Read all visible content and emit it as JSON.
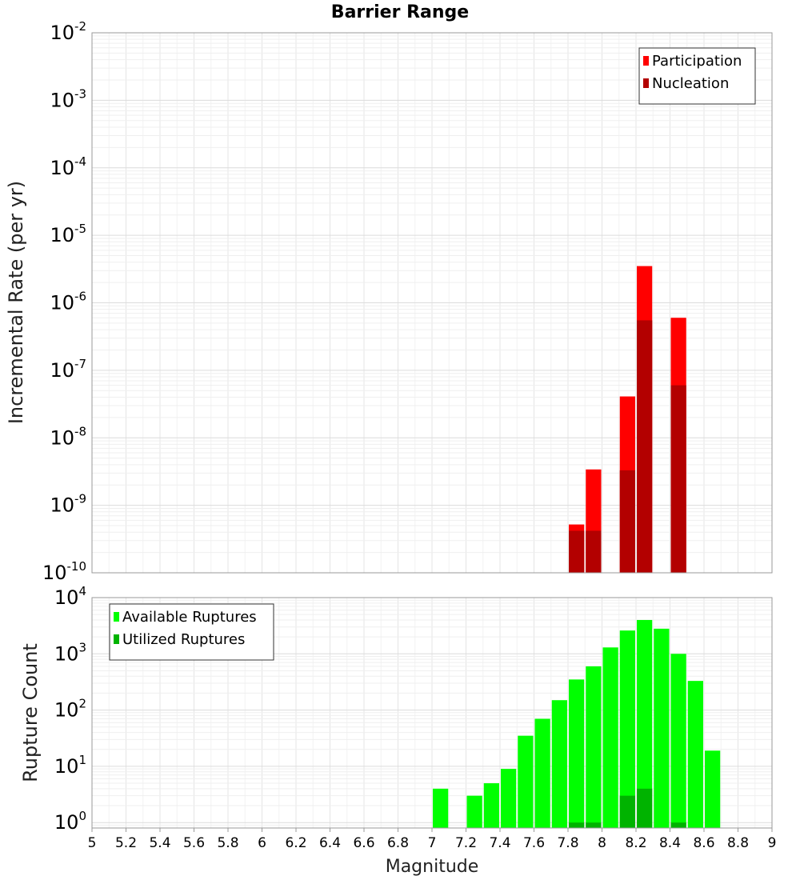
{
  "chart_data": [
    {
      "type": "bar",
      "title": "Barrier Range",
      "xlabel": "",
      "ylabel": "Incremental Rate (per yr)",
      "yscale": "log",
      "ylim": [
        1e-10,
        0.01
      ],
      "xlim": [
        5,
        9
      ],
      "grid": true,
      "legend_position": "top-right",
      "x": [
        7.85,
        7.95,
        8.15,
        8.25,
        8.45
      ],
      "series": [
        {
          "name": "Participation",
          "color": "#ff0000",
          "values": [
            5.2e-10,
            3.4e-09,
            4.1e-08,
            3.5e-06,
            6e-07
          ]
        },
        {
          "name": "Nucleation",
          "color": "#b30000",
          "values": [
            4.2e-10,
            4.2e-10,
            3.3e-09,
            5.5e-07,
            6e-08
          ]
        }
      ]
    },
    {
      "type": "bar",
      "xlabel": "Magnitude",
      "ylabel": "Rupture Count",
      "yscale": "log",
      "ylim": [
        0.8,
        10000
      ],
      "xlim": [
        5,
        9
      ],
      "grid": true,
      "legend_position": "top-left",
      "x": [
        7.05,
        7.25,
        7.35,
        7.45,
        7.55,
        7.65,
        7.75,
        7.85,
        7.95,
        8.05,
        8.15,
        8.25,
        8.35,
        8.45,
        8.55,
        8.65
      ],
      "series": [
        {
          "name": "Available Ruptures",
          "color": "#00ff00",
          "values": [
            4,
            3,
            5,
            9,
            35,
            70,
            150,
            350,
            600,
            1300,
            2600,
            4000,
            2800,
            1000,
            330,
            19
          ]
        },
        {
          "name": "Utilized Ruptures",
          "color": "#00b300",
          "values": [
            0,
            0,
            0,
            0,
            0,
            0,
            0,
            1,
            1,
            0,
            3,
            4,
            0,
            1,
            0,
            0
          ]
        }
      ],
      "xticks": [
        "5",
        "5.2",
        "5.4",
        "5.6",
        "5.8",
        "6",
        "6.2",
        "6.4",
        "6.6",
        "6.8",
        "7",
        "7.2",
        "7.4",
        "7.6",
        "7.8",
        "8",
        "8.2",
        "8.4",
        "8.6",
        "8.8",
        "9"
      ]
    }
  ]
}
